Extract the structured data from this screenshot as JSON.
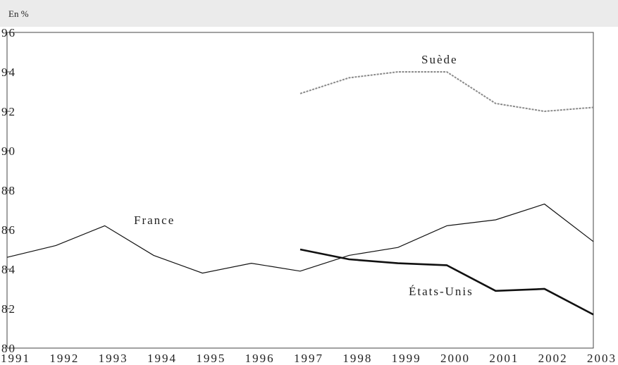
{
  "chart_data": {
    "type": "line",
    "subtitle": "En %",
    "categories": [
      "1991",
      "1992",
      "1993",
      "1994",
      "1995",
      "1996",
      "1997",
      "1998",
      "1999",
      "2000",
      "2001",
      "2002",
      "2003"
    ],
    "series": [
      {
        "name": "France",
        "color": "#111111",
        "values": [
          84.6,
          85.2,
          86.2,
          84.7,
          83.8,
          84.3,
          83.9,
          84.7,
          85.1,
          86.2,
          86.5,
          87.3,
          85.4
        ]
      },
      {
        "name": "Suède",
        "color": "#8a8a8a",
        "values": [
          null,
          null,
          null,
          null,
          null,
          null,
          92.9,
          93.7,
          94.0,
          94.0,
          92.4,
          92.0,
          92.2
        ]
      },
      {
        "name": "États-Unis",
        "color": "#111111",
        "values": [
          null,
          null,
          null,
          null,
          null,
          null,
          85.0,
          84.5,
          84.3,
          84.2,
          82.9,
          83.0,
          81.7
        ]
      }
    ],
    "ylim": [
      80,
      96
    ],
    "yticks": [
      80,
      82,
      84,
      86,
      88,
      90,
      92,
      94,
      96
    ]
  }
}
